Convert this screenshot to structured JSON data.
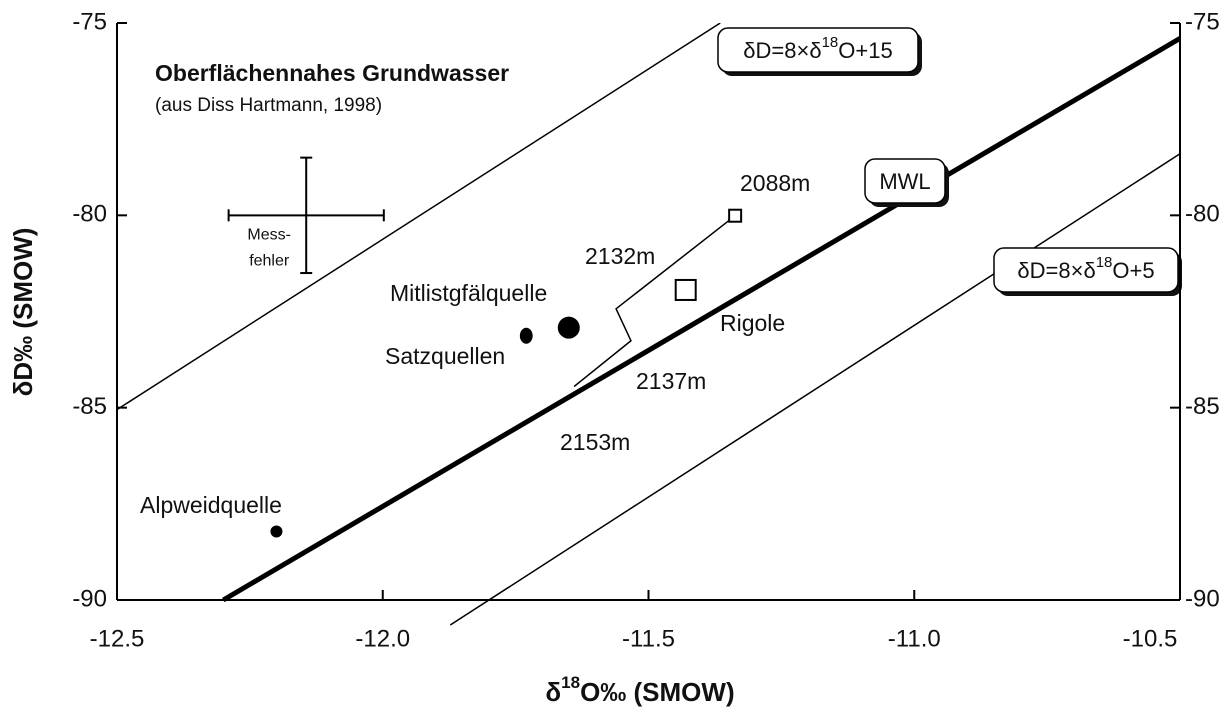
{
  "chart_data": {
    "type": "scatter",
    "title": "Oberflächennahes Grundwasser",
    "subtitle": "(aus Diss Hartmann, 1998)",
    "x_label_parts": [
      "δ",
      "18",
      "O‰ (SMOW)"
    ],
    "y_label": "δD‰ (SMOW)",
    "xlim": [
      -12.5,
      -10.5
    ],
    "ylim": [
      -90,
      -75
    ],
    "xticks": [
      -12.5,
      {
        "value": -12,
        "label": "-12.0"
      },
      -11.5,
      {
        "value": -11,
        "label": "-11.0"
      },
      -10.5
    ],
    "yticks": [
      -90,
      -85,
      -80,
      -75
    ],
    "color": "#000000",
    "series": [
      {
        "labels": [
          "2088m",
          "2132m",
          "2137m",
          "2153m"
        ],
        "x": [
          -11.337,
          -11.561,
          -11.533,
          -11.64
        ],
        "y": [
          -80.01,
          -82.43,
          -83.26,
          -84.45
        ],
        "marker": "square",
        "connected": true
      },
      {
        "labels": [
          "Rigole"
        ],
        "x": [
          -11.43
        ],
        "y": [
          -81.94
        ],
        "marker": "square",
        "connected": false
      },
      {
        "labels": [
          "Mitlistgfälquelle",
          "Satzquellen",
          "Alpweidquelle"
        ],
        "x": [
          -11.65,
          -11.73,
          -12.2
        ],
        "y": [
          -82.92,
          -83.13,
          -88.22
        ],
        "marker": "circle",
        "connected": false
      }
    ],
    "lines": [
      {
        "label_parts": [
          "δD=8×δ",
          "18",
          "O+15"
        ],
        "x": [
          -12.5,
          -11.365
        ],
        "y": [
          -85.05,
          -75
        ],
        "width": 1.5
      },
      {
        "label_parts": [
          "MWL"
        ],
        "x": [
          -12.3,
          -10.5
        ],
        "y": [
          -90,
          -75.4
        ],
        "width": 5
      },
      {
        "label_parts": [
          "δD=8×δ",
          "18",
          "O+5"
        ],
        "x": [
          -11.873,
          -10.5
        ],
        "y": [
          -90.65,
          -78.4
        ],
        "width": 1.5
      }
    ],
    "error_bar": {
      "x": -12.144,
      "y": -80,
      "xerr": 0.146,
      "yerr": 1.5,
      "label_lines": [
        "Mess-",
        "fehler"
      ]
    }
  }
}
